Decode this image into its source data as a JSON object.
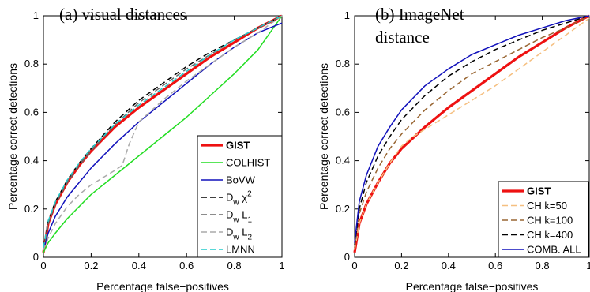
{
  "chart_data": [
    {
      "type": "line",
      "title": "(a) visual distances",
      "xlabel": "Percentage false−positives",
      "ylabel": "Percentage correct detections",
      "xlim": [
        0,
        1
      ],
      "ylim": [
        0,
        1
      ],
      "xticks": [
        "0",
        "0.2",
        "0.4",
        "0.6",
        "0.8",
        "1"
      ],
      "yticks": [
        "0",
        "0.2",
        "0.4",
        "0.6",
        "0.8",
        "1"
      ],
      "legend_position": "bottom-right",
      "series": [
        {
          "name": "GIST",
          "color": "#ee1111",
          "width": 3.2,
          "dash": "",
          "x": [
            0,
            0.02,
            0.05,
            0.1,
            0.15,
            0.2,
            0.3,
            0.4,
            0.5,
            0.6,
            0.7,
            0.8,
            0.9,
            1.0
          ],
          "y": [
            0.02,
            0.14,
            0.22,
            0.31,
            0.38,
            0.44,
            0.54,
            0.62,
            0.69,
            0.76,
            0.83,
            0.89,
            0.95,
            1.0
          ]
        },
        {
          "name": "COLHIST",
          "color": "#22dd22",
          "width": 1.5,
          "dash": "",
          "x": [
            0,
            0.02,
            0.05,
            0.1,
            0.2,
            0.3,
            0.4,
            0.5,
            0.6,
            0.7,
            0.8,
            0.9,
            1.0
          ],
          "y": [
            0.02,
            0.06,
            0.1,
            0.16,
            0.26,
            0.34,
            0.42,
            0.5,
            0.58,
            0.67,
            0.76,
            0.86,
            1.0
          ]
        },
        {
          "name": "BoVW",
          "color": "#1111bb",
          "width": 1.5,
          "dash": "",
          "x": [
            0,
            0.02,
            0.05,
            0.1,
            0.2,
            0.3,
            0.4,
            0.5,
            0.6,
            0.7,
            0.8,
            0.9,
            1.0
          ],
          "y": [
            0.03,
            0.1,
            0.17,
            0.25,
            0.37,
            0.47,
            0.56,
            0.64,
            0.72,
            0.8,
            0.87,
            0.93,
            0.97
          ]
        },
        {
          "name": "D_w χ^2",
          "color": "#000000",
          "width": 1.5,
          "dash": "7,4",
          "x": [
            0,
            0.02,
            0.05,
            0.1,
            0.15,
            0.2,
            0.3,
            0.4,
            0.5,
            0.6,
            0.7,
            0.8,
            0.9,
            1.0
          ],
          "y": [
            0.03,
            0.15,
            0.23,
            0.32,
            0.39,
            0.45,
            0.56,
            0.65,
            0.72,
            0.79,
            0.85,
            0.9,
            0.95,
            1.0
          ]
        },
        {
          "name": "D_w L_1",
          "color": "#666666",
          "width": 1.5,
          "dash": "7,4",
          "x": [
            0,
            0.02,
            0.05,
            0.1,
            0.15,
            0.2,
            0.3,
            0.4,
            0.5,
            0.6,
            0.7,
            0.8,
            0.9,
            1.0
          ],
          "y": [
            0.03,
            0.14,
            0.22,
            0.31,
            0.38,
            0.44,
            0.55,
            0.64,
            0.71,
            0.78,
            0.84,
            0.9,
            0.95,
            1.0
          ]
        },
        {
          "name": "D_w L_2",
          "color": "#aaaaaa",
          "width": 1.5,
          "dash": "7,4",
          "x": [
            0,
            0.02,
            0.05,
            0.1,
            0.15,
            0.2,
            0.25,
            0.3,
            0.33,
            0.36,
            0.4,
            0.5,
            0.6,
            0.7,
            0.8,
            0.9,
            1.0
          ],
          "y": [
            0.03,
            0.08,
            0.14,
            0.21,
            0.26,
            0.3,
            0.33,
            0.36,
            0.38,
            0.47,
            0.56,
            0.65,
            0.73,
            0.8,
            0.87,
            0.93,
            1.0
          ]
        },
        {
          "name": "LMNN",
          "color": "#22cccc",
          "width": 1.5,
          "dash": "7,4",
          "x": [
            0,
            0.02,
            0.05,
            0.1,
            0.15,
            0.2,
            0.3,
            0.4,
            0.5,
            0.6,
            0.7,
            0.8,
            0.9,
            1.0
          ],
          "y": [
            0.04,
            0.15,
            0.23,
            0.32,
            0.39,
            0.45,
            0.55,
            0.63,
            0.7,
            0.77,
            0.84,
            0.9,
            0.95,
            1.0
          ]
        }
      ]
    },
    {
      "type": "line",
      "title": "(b) ImageNet",
      "subtitle": "distance",
      "xlabel": "Percentage false−positives",
      "ylabel": "Percentage correct detections",
      "xlim": [
        0,
        1
      ],
      "ylim": [
        0,
        1
      ],
      "xticks": [
        "0",
        "0.2",
        "0.4",
        "0.6",
        "0.8",
        "1"
      ],
      "yticks": [
        "0",
        "0.2",
        "0.4",
        "0.6",
        "0.8",
        "1"
      ],
      "legend_position": "bottom-right",
      "series": [
        {
          "name": "GIST",
          "color": "#ee1111",
          "width": 3.2,
          "dash": "",
          "x": [
            0,
            0.02,
            0.05,
            0.1,
            0.15,
            0.2,
            0.3,
            0.4,
            0.5,
            0.6,
            0.7,
            0.8,
            0.9,
            1.0
          ],
          "y": [
            0.02,
            0.14,
            0.22,
            0.31,
            0.39,
            0.45,
            0.54,
            0.62,
            0.69,
            0.76,
            0.83,
            0.89,
            0.95,
            1.0
          ]
        },
        {
          "name": "CH k=50",
          "color": "#f5bf80",
          "width": 1.5,
          "dash": "7,4",
          "x": [
            0,
            0.02,
            0.05,
            0.1,
            0.15,
            0.2,
            0.25,
            0.3,
            0.4,
            0.5,
            0.6,
            0.7,
            0.8,
            0.9,
            1.0
          ],
          "y": [
            0.03,
            0.14,
            0.22,
            0.31,
            0.39,
            0.46,
            0.5,
            0.53,
            0.59,
            0.65,
            0.71,
            0.78,
            0.85,
            0.92,
            0.99
          ]
        },
        {
          "name": "CH k=100",
          "color": "#996633",
          "width": 1.5,
          "dash": "7,4",
          "x": [
            0,
            0.02,
            0.05,
            0.1,
            0.15,
            0.2,
            0.3,
            0.4,
            0.5,
            0.6,
            0.7,
            0.8,
            0.9,
            1.0
          ],
          "y": [
            0.04,
            0.18,
            0.27,
            0.37,
            0.45,
            0.51,
            0.61,
            0.69,
            0.76,
            0.81,
            0.86,
            0.91,
            0.95,
            1.0
          ]
        },
        {
          "name": "CH k=400",
          "color": "#000000",
          "width": 1.5,
          "dash": "7,4",
          "x": [
            0,
            0.02,
            0.05,
            0.1,
            0.15,
            0.2,
            0.3,
            0.4,
            0.5,
            0.6,
            0.7,
            0.8,
            0.9,
            1.0
          ],
          "y": [
            0.05,
            0.2,
            0.31,
            0.42,
            0.5,
            0.57,
            0.67,
            0.75,
            0.81,
            0.86,
            0.9,
            0.94,
            0.97,
            1.0
          ]
        },
        {
          "name": "COMB. ALL",
          "color": "#1111bb",
          "width": 1.5,
          "dash": "",
          "x": [
            0,
            0.02,
            0.05,
            0.1,
            0.15,
            0.2,
            0.3,
            0.4,
            0.5,
            0.6,
            0.7,
            0.8,
            0.9,
            1.0
          ],
          "y": [
            0.06,
            0.23,
            0.34,
            0.46,
            0.54,
            0.61,
            0.71,
            0.78,
            0.84,
            0.88,
            0.92,
            0.95,
            0.98,
            1.0
          ]
        }
      ]
    }
  ]
}
